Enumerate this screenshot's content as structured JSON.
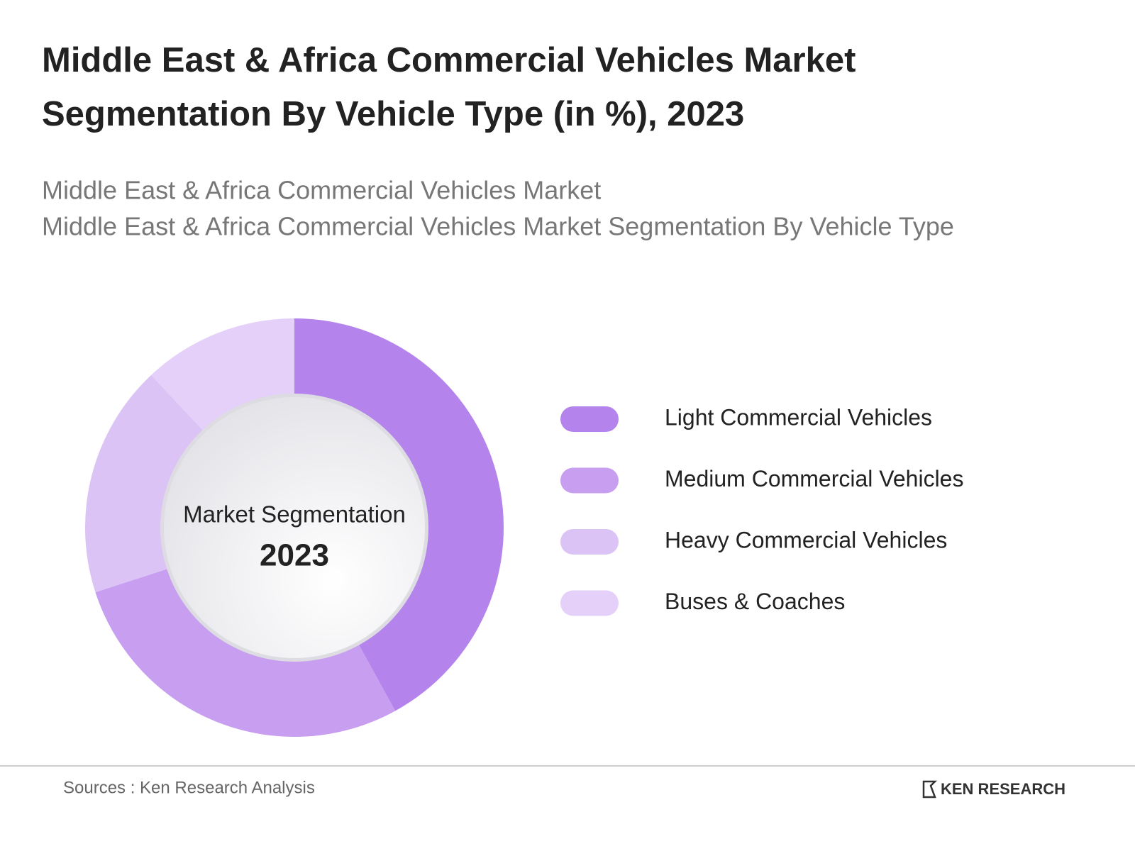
{
  "chart_data": {
    "type": "pie",
    "title": "Middle East & Africa Commercial Vehicles Market Segmentation By Vehicle Type (in %), 2023",
    "subtitles": [
      "Middle East & Africa Commercial Vehicles Market",
      "Middle East & Africa Commercial Vehicles Market Segmentation By Vehicle Type"
    ],
    "center_label": "Market Segmentation",
    "center_year": "2023",
    "categories": [
      "Light Commercial Vehicles",
      "Medium Commercial Vehicles",
      "Heavy Commercial Vehicles",
      "Buses & Coaches"
    ],
    "values": [
      42,
      28,
      18,
      12
    ],
    "colors": [
      "#b484ec",
      "#c89ef0",
      "#dcc3f6",
      "#e4d0f8"
    ],
    "source": "Sources : Ken Research Analysis",
    "logo": "KEN RESEARCH"
  }
}
